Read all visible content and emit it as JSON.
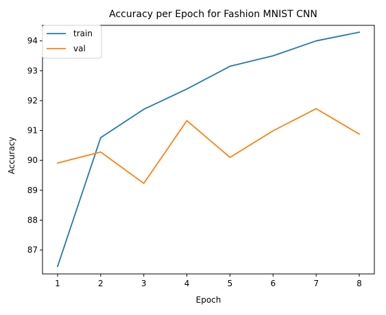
{
  "chart_data": {
    "type": "line",
    "title": "Accuracy per Epoch for Fashion MNIST CNN",
    "xlabel": "Epoch",
    "ylabel": "Accuracy",
    "x": [
      1,
      2,
      3,
      4,
      5,
      6,
      7,
      8
    ],
    "xlim": [
      0.65,
      8.35
    ],
    "ylim": [
      86.2,
      94.52
    ],
    "xticks": [
      1,
      2,
      3,
      4,
      5,
      6,
      7,
      8
    ],
    "yticks": [
      87,
      88,
      89,
      90,
      91,
      92,
      93,
      94
    ],
    "grid": false,
    "legend_position": "top-left",
    "series": [
      {
        "name": "train",
        "color": "#1f77b4",
        "values": [
          86.45,
          90.76,
          91.71,
          92.39,
          93.15,
          93.5,
          94.0,
          94.29
        ]
      },
      {
        "name": "val",
        "color": "#ff7f0e",
        "values": [
          89.91,
          90.28,
          89.23,
          91.33,
          90.1,
          90.99,
          91.73,
          90.88
        ]
      }
    ]
  }
}
